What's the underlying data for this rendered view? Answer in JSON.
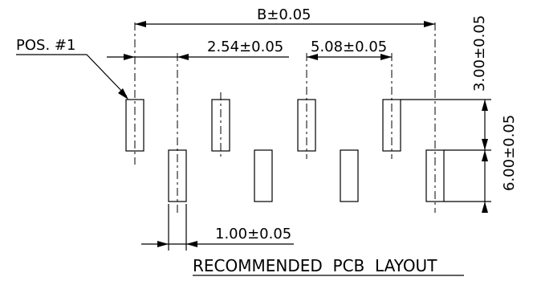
{
  "labels": {
    "pos1": "POS. #1",
    "dim_b": "B±0.05",
    "dim_pitch": "2.54±0.05",
    "dim_row_pitch": "5.08±0.05",
    "dim_width": "1.00±0.05",
    "dim_height": "3.00±0.05",
    "dim_offset": "6.00±0.05",
    "title": "RECOMMENDED  PCB  LAYOUT"
  }
}
